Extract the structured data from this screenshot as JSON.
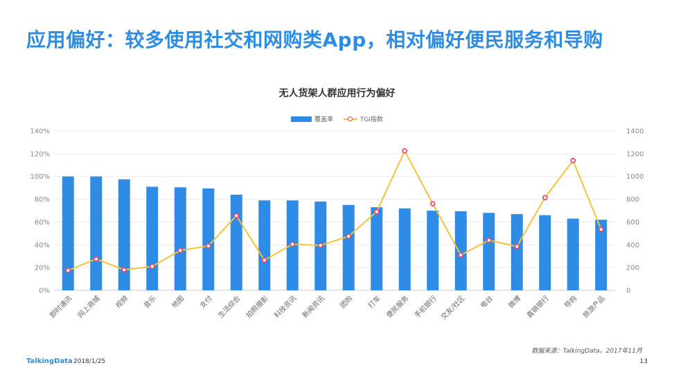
{
  "header": {
    "title": "应用偏好：较多使用社交和网购类App，相对偏好便民服务和导购"
  },
  "footer": {
    "source": "数据来源：TalkingData，2017年11月",
    "brand": "TalkingData",
    "date": "2018/1/25",
    "page": "13"
  },
  "colors": {
    "bar": "#2e8be6",
    "line": "#f5c33a",
    "marker": "#e84c6a",
    "title": "#2e8de0"
  },
  "chart_data": {
    "type": "bar",
    "title": "无人货架人群应用行为偏好",
    "legend_position": "top-center",
    "grid": true,
    "categories": [
      "即时通讯",
      "网上商城",
      "视频",
      "音乐",
      "地图",
      "支付",
      "生活综合",
      "拍照摄影",
      "科技资讯",
      "新闻资讯",
      "团购",
      "打车",
      "便民服务",
      "手机银行",
      "交友/社区",
      "电台",
      "微博",
      "直销银行",
      "导购",
      "旅游产品"
    ],
    "series": [
      {
        "name": "覆盖率",
        "type": "bar",
        "axis": "left",
        "unit": "%",
        "values": [
          100,
          100,
          97.5,
          91,
          90.5,
          89.5,
          84,
          79,
          79,
          78,
          75,
          73,
          72,
          70,
          69.5,
          68,
          67,
          66,
          63,
          62
        ]
      },
      {
        "name": "TGI指数",
        "type": "line",
        "axis": "right",
        "values": [
          175,
          275,
          180,
          210,
          350,
          390,
          655,
          265,
          405,
          395,
          475,
          690,
          1225,
          760,
          310,
          440,
          385,
          815,
          1140,
          535
        ]
      }
    ],
    "y_left": {
      "ticks": [
        "0%",
        "20%",
        "40%",
        "60%",
        "80%",
        "100%",
        "120%",
        "140%"
      ],
      "range": [
        0,
        140
      ]
    },
    "y_right": {
      "ticks": [
        "0",
        "200",
        "400",
        "600",
        "800",
        "1000",
        "1200",
        "1400"
      ],
      "range": [
        0,
        1400
      ]
    }
  }
}
